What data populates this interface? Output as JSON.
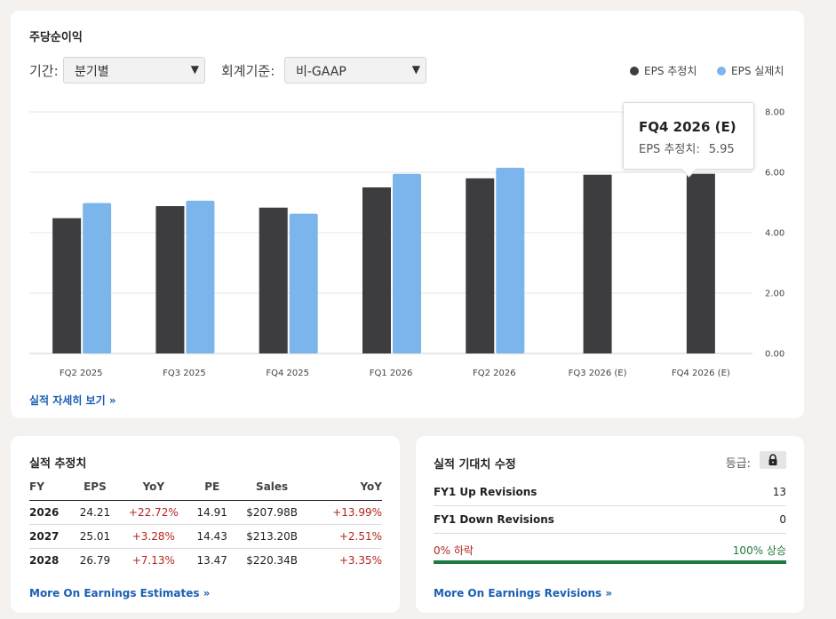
{
  "eps_section": {
    "title": "주당순이익",
    "period_label": "기간:",
    "period_value": "분기별",
    "basis_label": "회계기준:",
    "basis_value": "비-GAAP",
    "legend_estimate": "EPS 추정치",
    "legend_actual": "EPS 실제치",
    "details_link": "실적 자세히 보기 »",
    "tooltip": {
      "title": "FQ4 2026 (E)",
      "label": "EPS 추정치:",
      "value": "5.95"
    }
  },
  "chart_data": {
    "type": "bar",
    "categories": [
      "FQ2 2025",
      "FQ3 2025",
      "FQ4 2025",
      "FQ1 2026",
      "FQ2 2026",
      "FQ3 2026 (E)",
      "FQ4 2026 (E)"
    ],
    "series": [
      {
        "name": "EPS 추정치",
        "color": "#3d3d40",
        "values": [
          4.48,
          4.88,
          4.83,
          5.5,
          5.8,
          5.92,
          5.95
        ]
      },
      {
        "name": "EPS 실제치",
        "color": "#7cb5ec",
        "values": [
          4.98,
          5.06,
          4.63,
          5.95,
          6.15,
          null,
          null
        ]
      }
    ],
    "y_ticks": [
      "0.00",
      "2.00",
      "4.00",
      "6.00",
      "8.00"
    ],
    "ylim": [
      0,
      8
    ],
    "grid": true,
    "y_axis_side": "right",
    "legend_position": "top-right"
  },
  "estimates": {
    "title": "실적 추정치",
    "columns": [
      "FY",
      "EPS",
      "YoY",
      "PE",
      "Sales",
      "YoY"
    ],
    "rows": [
      [
        "2026",
        "24.21",
        "+22.72%",
        "14.91",
        "$207.98B",
        "+13.99%"
      ],
      [
        "2027",
        "25.01",
        "+3.28%",
        "14.43",
        "$213.20B",
        "+2.51%"
      ],
      [
        "2028",
        "26.79",
        "+7.13%",
        "13.47",
        "$220.34B",
        "+3.35%"
      ]
    ],
    "link": "More On Earnings Estimates »"
  },
  "revisions": {
    "title": "실적 기대치 수정",
    "grade_label": "등급:",
    "lock_icon": "lock-icon",
    "up_label": "FY1 Up Revisions",
    "up_value": "13",
    "down_label": "FY1 Down Revisions",
    "down_value": "0",
    "down_pct": "0% 하락",
    "up_pct": "100% 상승",
    "up_fraction": 1.0,
    "link": "More On Earnings Revisions »"
  },
  "colors": {
    "estimate": "#3d3d40",
    "actual": "#7cb5ec",
    "positive": "#b3261e",
    "up_bar": "#1e7a3e",
    "link": "#1a5fb4"
  }
}
